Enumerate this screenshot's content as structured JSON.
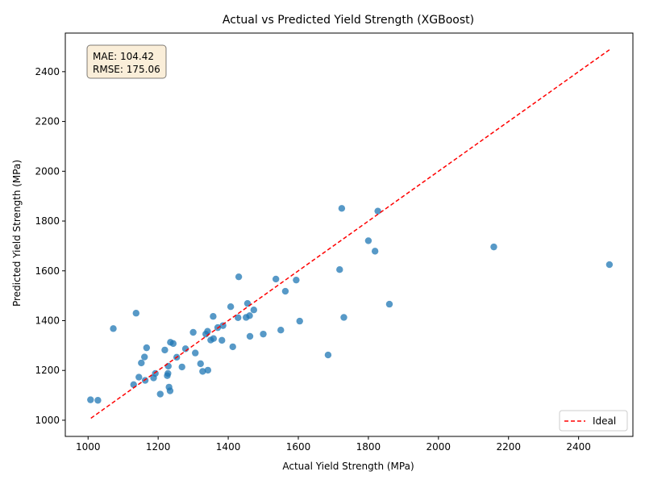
{
  "chart_data": {
    "type": "scatter",
    "title": "Actual vs Predicted Yield Strength (XGBoost)",
    "xlabel": "Actual Yield Strength (MPa)",
    "ylabel": "Predicted Yield Strength (MPa)",
    "xlim": [
      935,
      2555
    ],
    "ylim": [
      935,
      2555
    ],
    "xticks": [
      1000,
      1200,
      1400,
      1600,
      1800,
      2000,
      2200,
      2400
    ],
    "yticks": [
      1000,
      1200,
      1400,
      1600,
      1800,
      2000,
      2200,
      2400
    ],
    "grid": false,
    "legend_position": "lower-right",
    "stats_box": [
      "MAE: 104.42",
      "RMSE: 175.06"
    ],
    "point_color": "#1f77b4",
    "ideal_line": {
      "name": "Ideal",
      "color": "#ff0000",
      "x": [
        1008,
        2488
      ],
      "y": [
        1008,
        2488
      ]
    },
    "points": [
      {
        "x": 1007,
        "y": 1082
      },
      {
        "x": 1028,
        "y": 1080
      },
      {
        "x": 1072,
        "y": 1368
      },
      {
        "x": 1130,
        "y": 1143
      },
      {
        "x": 1137,
        "y": 1430
      },
      {
        "x": 1145,
        "y": 1173
      },
      {
        "x": 1152,
        "y": 1230
      },
      {
        "x": 1161,
        "y": 1254
      },
      {
        "x": 1163,
        "y": 1160
      },
      {
        "x": 1167,
        "y": 1291
      },
      {
        "x": 1187,
        "y": 1170
      },
      {
        "x": 1192,
        "y": 1188
      },
      {
        "x": 1206,
        "y": 1105
      },
      {
        "x": 1219,
        "y": 1282
      },
      {
        "x": 1226,
        "y": 1179
      },
      {
        "x": 1228,
        "y": 1188
      },
      {
        "x": 1229,
        "y": 1217
      },
      {
        "x": 1231,
        "y": 1133
      },
      {
        "x": 1234,
        "y": 1118
      },
      {
        "x": 1235,
        "y": 1313
      },
      {
        "x": 1243,
        "y": 1308
      },
      {
        "x": 1253,
        "y": 1253
      },
      {
        "x": 1268,
        "y": 1214
      },
      {
        "x": 1278,
        "y": 1287
      },
      {
        "x": 1300,
        "y": 1353
      },
      {
        "x": 1306,
        "y": 1270
      },
      {
        "x": 1321,
        "y": 1227
      },
      {
        "x": 1327,
        "y": 1196
      },
      {
        "x": 1336,
        "y": 1346
      },
      {
        "x": 1341,
        "y": 1357
      },
      {
        "x": 1342,
        "y": 1201
      },
      {
        "x": 1350,
        "y": 1322
      },
      {
        "x": 1357,
        "y": 1417
      },
      {
        "x": 1358,
        "y": 1328
      },
      {
        "x": 1370,
        "y": 1372
      },
      {
        "x": 1382,
        "y": 1321
      },
      {
        "x": 1385,
        "y": 1380
      },
      {
        "x": 1407,
        "y": 1456
      },
      {
        "x": 1413,
        "y": 1295
      },
      {
        "x": 1428,
        "y": 1412
      },
      {
        "x": 1430,
        "y": 1576
      },
      {
        "x": 1451,
        "y": 1413
      },
      {
        "x": 1455,
        "y": 1469
      },
      {
        "x": 1461,
        "y": 1420
      },
      {
        "x": 1462,
        "y": 1337
      },
      {
        "x": 1473,
        "y": 1443
      },
      {
        "x": 1500,
        "y": 1346
      },
      {
        "x": 1536,
        "y": 1567
      },
      {
        "x": 1550,
        "y": 1362
      },
      {
        "x": 1563,
        "y": 1518
      },
      {
        "x": 1594,
        "y": 1563
      },
      {
        "x": 1604,
        "y": 1398
      },
      {
        "x": 1685,
        "y": 1262
      },
      {
        "x": 1718,
        "y": 1605
      },
      {
        "x": 1724,
        "y": 1851
      },
      {
        "x": 1730,
        "y": 1413
      },
      {
        "x": 1800,
        "y": 1721
      },
      {
        "x": 1819,
        "y": 1679
      },
      {
        "x": 1827,
        "y": 1840
      },
      {
        "x": 1860,
        "y": 1466
      },
      {
        "x": 2158,
        "y": 1696
      },
      {
        "x": 2488,
        "y": 1625
      }
    ]
  }
}
